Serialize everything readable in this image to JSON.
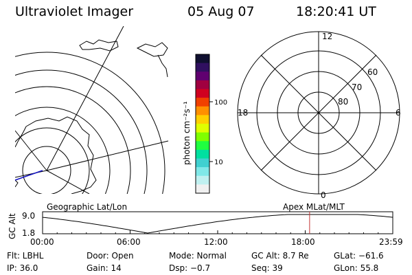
{
  "header": {
    "title": "Ultraviolet Imager",
    "date": "05 Aug 07",
    "time": "18:20:41 UT"
  },
  "colorbar": {
    "axis_label": "photon cm⁻²s⁻¹",
    "ticks": [
      "100",
      "10"
    ],
    "colors": [
      "#101030",
      "#301060",
      "#600070",
      "#a00040",
      "#d00020",
      "#f04000",
      "#ff9000",
      "#ffd000",
      "#e0ff00",
      "#80ff00",
      "#20ff40",
      "#00e0a0",
      "#40d0d0",
      "#80e8e8",
      "#c0f0f0",
      "#f0f0f0"
    ]
  },
  "left_panel": {
    "caption": "Geographic Lat/Lon",
    "boundary_color": "#1010c0"
  },
  "right_panel": {
    "caption": "Apex MLat/MLT",
    "lat_labels": [
      "80",
      "70",
      "60"
    ],
    "mlt_labels": {
      "top": "12",
      "bottom": "0",
      "left": "18",
      "right": "6"
    }
  },
  "altitude_plot": {
    "axis_label": "GC Alt",
    "y_labels": [
      "9.0",
      "1.8"
    ],
    "x_labels": [
      "00:00",
      "06:00",
      "12:00",
      "18:00",
      "23:59"
    ],
    "marker_color": "#c03030",
    "marker_time_hours": 18.3
  },
  "info": {
    "flt": "Flt: LBHL",
    "ip": "IP: 36.0",
    "door": "Door: Open",
    "gain": "Gain: 14",
    "mode": "Mode: Normal",
    "dsp": "Dsp:   −0.7",
    "gc_alt": "GC Alt: 8.7 Re",
    "seq": "Seq: 39",
    "glat": "GLat: −61.6",
    "glon": "GLon:  55.8"
  }
}
